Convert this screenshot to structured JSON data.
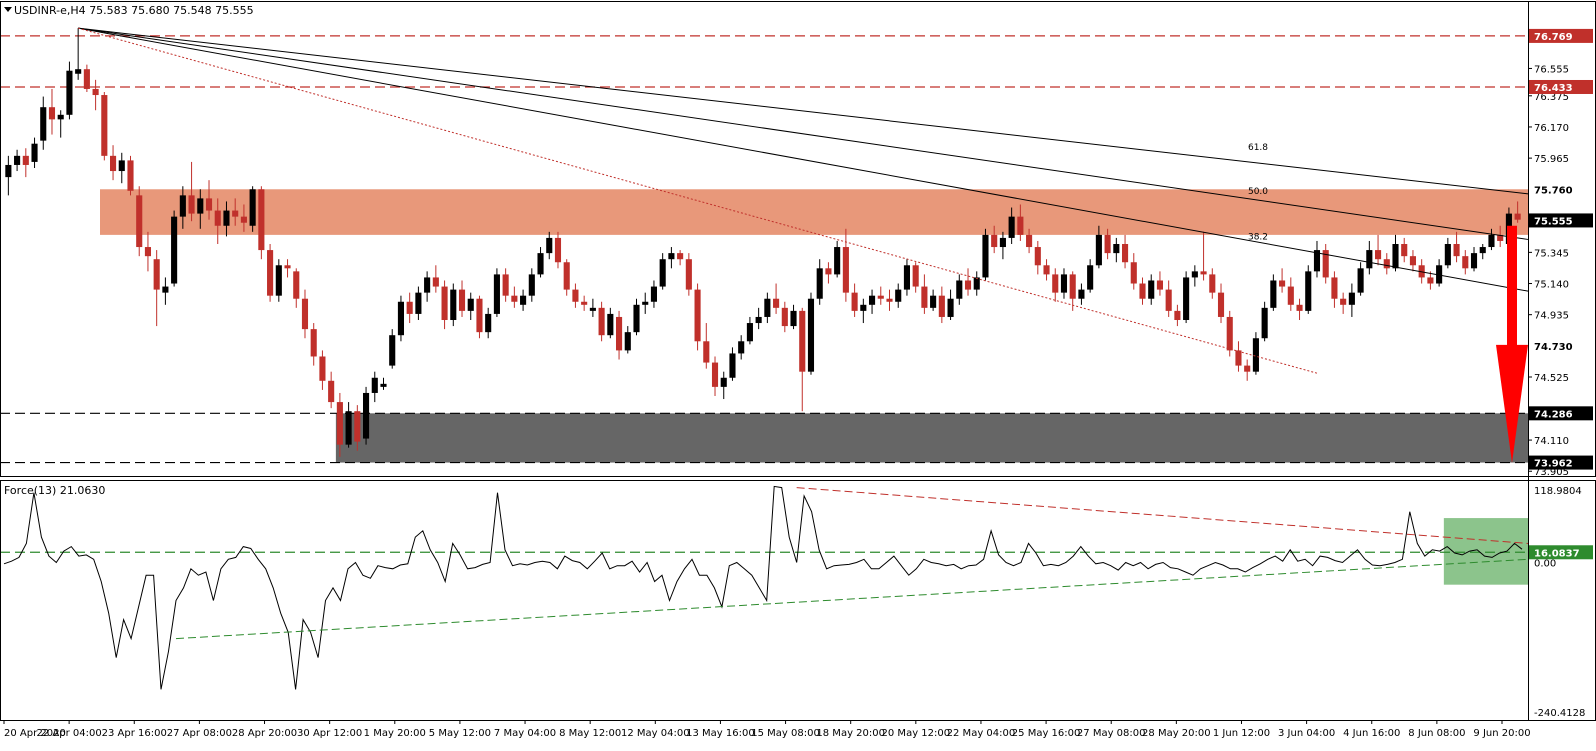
{
  "header": {
    "symbol": "USDINR-e,H4",
    "ohlc": "75.583 75.680 75.548 75.555"
  },
  "indicator": {
    "label": "Force(13) 21.0630",
    "axis_ticks": [
      "118.9804",
      "0.00",
      "-240.4128"
    ],
    "level_label": "16.0837"
  },
  "colors": {
    "bull_candle": "#000000",
    "bear_candle": "#c0302b",
    "resistance_zone": "#e8987a",
    "support_zone": "#666666",
    "force_zone": "#8cc48c",
    "arrow": "#ff0000",
    "level_line": "#c0302b",
    "indicator_level": "#2e8b2e"
  },
  "chart_data": {
    "type": "candlestick",
    "price_axis": {
      "ylim": [
        73.9,
        76.9
      ],
      "tick_labels": [
        "76.555",
        "76.375",
        "76.170",
        "75.965",
        "75.345",
        "75.140",
        "74.935",
        "74.525",
        "74.110",
        "73.905"
      ],
      "highlighted_levels": [
        "76.769",
        "76.433",
        "75.760",
        "75.555",
        "74.730",
        "74.286",
        "73.962"
      ]
    },
    "x_tick_labels": [
      "20 Apr 2020",
      "22 Apr 04:00",
      "23 Apr 16:00",
      "27 Apr 08:00",
      "28 Apr 20:00",
      "30 Apr 12:00",
      "1 May 20:00",
      "5 May 12:00",
      "7 May 04:00",
      "8 May 12:00",
      "12 May 04:00",
      "13 May 16:00",
      "15 May 08:00",
      "18 May 20:00",
      "20 May 12:00",
      "22 May 04:00",
      "25 May 16:00",
      "27 May 08:00",
      "28 May 20:00",
      "1 Jun 12:00",
      "3 Jun 04:00",
      "4 Jun 16:00",
      "8 Jun 08:00",
      "9 Jun 20:00"
    ],
    "horizontal_levels": [
      {
        "value": 76.769,
        "label": "76.769",
        "style": "dashed-red"
      },
      {
        "value": 76.433,
        "label": "76.433",
        "style": "dashed-red"
      },
      {
        "value": 74.286,
        "label": "74.286",
        "style": "dashed-black"
      },
      {
        "value": 73.962,
        "label": "73.962",
        "style": "dashed-black"
      }
    ],
    "zones": [
      {
        "kind": "resistance",
        "from": 75.46,
        "to": 75.76
      },
      {
        "kind": "support",
        "from": 73.962,
        "to": 74.286
      }
    ],
    "fibonacci_fan": {
      "anchor_value": 76.82,
      "levels": [
        {
          "label": "38.2",
          "end_value": 75.09
        },
        {
          "label": "50.0",
          "end_value": 75.43
        },
        {
          "label": "61.8",
          "end_value": 75.73
        }
      ]
    },
    "trendline_dotted": {
      "from": 76.82,
      "to": 74.55
    },
    "arrow": {
      "from": 75.52,
      "to": 73.96,
      "direction": "down"
    },
    "candles": [
      [
        75.84,
        75.98,
        75.72,
        75.92
      ],
      [
        75.92,
        76.02,
        75.88,
        75.98
      ],
      [
        75.98,
        76.03,
        75.84,
        75.92
      ],
      [
        75.94,
        76.1,
        75.9,
        76.06
      ],
      [
        76.08,
        76.37,
        76.02,
        76.3
      ],
      [
        76.3,
        76.42,
        76.12,
        76.22
      ],
      [
        76.22,
        76.28,
        76.1,
        76.25
      ],
      [
        76.25,
        76.6,
        76.22,
        76.54
      ],
      [
        76.52,
        76.82,
        76.48,
        76.55
      ],
      [
        76.55,
        76.58,
        76.4,
        76.42
      ],
      [
        76.42,
        76.48,
        76.28,
        76.38
      ],
      [
        76.38,
        76.4,
        75.95,
        75.98
      ],
      [
        75.98,
        76.05,
        75.82,
        75.88
      ],
      [
        75.88,
        76.0,
        75.8,
        75.95
      ],
      [
        75.95,
        75.98,
        75.72,
        75.75
      ],
      [
        75.72,
        75.78,
        75.32,
        75.38
      ],
      [
        75.38,
        75.48,
        75.22,
        75.32
      ],
      [
        75.3,
        75.36,
        74.86,
        75.1
      ],
      [
        75.08,
        75.18,
        75.0,
        75.12
      ],
      [
        75.14,
        75.62,
        75.12,
        75.58
      ],
      [
        75.58,
        75.78,
        75.5,
        75.72
      ],
      [
        75.72,
        75.94,
        75.55,
        75.6
      ],
      [
        75.6,
        75.76,
        75.5,
        75.7
      ],
      [
        75.7,
        75.82,
        75.56,
        75.62
      ],
      [
        75.62,
        75.7,
        75.4,
        75.52
      ],
      [
        75.52,
        75.68,
        75.45,
        75.62
      ],
      [
        75.62,
        75.7,
        75.52,
        75.58
      ],
      [
        75.58,
        75.66,
        75.48,
        75.54
      ],
      [
        75.52,
        75.78,
        75.48,
        75.76
      ],
      [
        75.76,
        75.78,
        75.3,
        75.36
      ],
      [
        75.36,
        75.4,
        75.02,
        75.06
      ],
      [
        75.06,
        75.3,
        75.02,
        75.26
      ],
      [
        75.26,
        75.3,
        75.18,
        75.24
      ],
      [
        75.22,
        75.24,
        74.98,
        75.04
      ],
      [
        75.04,
        75.1,
        74.78,
        74.84
      ],
      [
        74.84,
        74.88,
        74.6,
        74.66
      ],
      [
        74.66,
        74.7,
        74.44,
        74.5
      ],
      [
        74.5,
        74.56,
        74.32,
        74.36
      ],
      [
        74.36,
        74.42,
        74.0,
        74.08
      ],
      [
        74.08,
        74.36,
        74.06,
        74.3
      ],
      [
        74.3,
        74.34,
        74.04,
        74.1
      ],
      [
        74.12,
        74.46,
        74.08,
        74.42
      ],
      [
        74.42,
        74.56,
        74.36,
        74.52
      ],
      [
        74.46,
        74.52,
        74.44,
        74.48
      ],
      [
        74.6,
        74.84,
        74.58,
        74.8
      ],
      [
        74.8,
        75.06,
        74.76,
        75.02
      ],
      [
        75.02,
        75.08,
        74.88,
        74.94
      ],
      [
        74.94,
        75.12,
        74.9,
        75.08
      ],
      [
        75.08,
        75.22,
        75.02,
        75.18
      ],
      [
        75.18,
        75.26,
        75.08,
        75.12
      ],
      [
        75.12,
        75.16,
        74.84,
        74.9
      ],
      [
        74.9,
        75.14,
        74.86,
        75.1
      ],
      [
        75.1,
        75.16,
        74.92,
        74.96
      ],
      [
        74.96,
        75.08,
        74.9,
        75.04
      ],
      [
        75.04,
        75.06,
        74.78,
        74.82
      ],
      [
        74.82,
        74.98,
        74.78,
        74.94
      ],
      [
        74.94,
        75.24,
        74.92,
        75.2
      ],
      [
        75.2,
        75.24,
        75.02,
        75.06
      ],
      [
        75.06,
        75.12,
        74.98,
        75.02
      ],
      [
        75.0,
        75.1,
        74.96,
        75.06
      ],
      [
        75.06,
        75.24,
        75.02,
        75.2
      ],
      [
        75.2,
        75.38,
        75.18,
        75.34
      ],
      [
        75.34,
        75.48,
        75.3,
        75.44
      ],
      [
        75.44,
        75.48,
        75.24,
        75.28
      ],
      [
        75.28,
        75.3,
        75.06,
        75.1
      ],
      [
        75.1,
        75.14,
        74.98,
        75.02
      ],
      [
        75.02,
        75.06,
        74.96,
        75.0
      ],
      [
        74.96,
        75.04,
        74.92,
        74.98
      ],
      [
        74.98,
        75.02,
        74.76,
        74.8
      ],
      [
        74.8,
        74.98,
        74.78,
        74.94
      ],
      [
        74.92,
        74.96,
        74.64,
        74.7
      ],
      [
        74.7,
        74.86,
        74.68,
        74.82
      ],
      [
        74.82,
        75.04,
        74.8,
        75.0
      ],
      [
        75.0,
        75.08,
        74.94,
        75.02
      ],
      [
        75.02,
        75.16,
        74.98,
        75.12
      ],
      [
        75.12,
        75.34,
        75.1,
        75.3
      ],
      [
        75.3,
        75.38,
        75.24,
        75.34
      ],
      [
        75.34,
        75.36,
        75.26,
        75.3
      ],
      [
        75.3,
        75.34,
        75.06,
        75.1
      ],
      [
        75.1,
        75.14,
        74.7,
        74.76
      ],
      [
        74.76,
        74.88,
        74.58,
        74.62
      ],
      [
        74.62,
        74.66,
        74.4,
        74.46
      ],
      [
        74.46,
        74.56,
        74.38,
        74.52
      ],
      [
        74.52,
        74.72,
        74.5,
        74.68
      ],
      [
        74.68,
        74.8,
        74.64,
        74.76
      ],
      [
        74.76,
        74.92,
        74.74,
        74.88
      ],
      [
        74.88,
        74.98,
        74.84,
        74.92
      ],
      [
        74.92,
        75.08,
        74.88,
        75.04
      ],
      [
        75.04,
        75.14,
        74.94,
        74.98
      ],
      [
        74.98,
        75.02,
        74.82,
        74.86
      ],
      [
        74.86,
        75.0,
        74.84,
        74.96
      ],
      [
        74.96,
        74.98,
        74.3,
        74.56
      ],
      [
        74.56,
        75.08,
        74.54,
        75.04
      ],
      [
        75.04,
        75.3,
        75.0,
        75.24
      ],
      [
        75.24,
        75.28,
        75.14,
        75.2
      ],
      [
        75.2,
        75.42,
        75.18,
        75.38
      ],
      [
        75.38,
        75.5,
        75.02,
        75.08
      ],
      [
        75.08,
        75.14,
        74.92,
        74.96
      ],
      [
        74.96,
        75.04,
        74.88,
        75.0
      ],
      [
        75.0,
        75.1,
        74.94,
        75.06
      ],
      [
        75.06,
        75.12,
        75.0,
        75.04
      ],
      [
        75.04,
        75.1,
        74.96,
        75.02
      ],
      [
        75.02,
        75.14,
        74.98,
        75.1
      ],
      [
        75.1,
        75.3,
        75.06,
        75.26
      ],
      [
        75.26,
        75.28,
        75.08,
        75.12
      ],
      [
        75.12,
        75.2,
        74.94,
        74.98
      ],
      [
        74.98,
        75.1,
        74.96,
        75.06
      ],
      [
        75.06,
        75.12,
        74.88,
        74.92
      ],
      [
        74.92,
        75.1,
        74.9,
        75.04
      ],
      [
        75.04,
        75.2,
        75.0,
        75.16
      ],
      [
        75.16,
        75.24,
        75.06,
        75.1
      ],
      [
        75.1,
        75.22,
        75.06,
        75.18
      ],
      [
        75.18,
        75.5,
        75.16,
        75.46
      ],
      [
        75.46,
        75.52,
        75.34,
        75.38
      ],
      [
        75.38,
        75.48,
        75.3,
        75.44
      ],
      [
        75.44,
        75.64,
        75.4,
        75.58
      ],
      [
        75.58,
        75.66,
        75.42,
        75.46
      ],
      [
        75.46,
        75.5,
        75.34,
        75.38
      ],
      [
        75.38,
        75.42,
        75.2,
        75.26
      ],
      [
        75.26,
        75.3,
        75.16,
        75.2
      ],
      [
        75.2,
        75.24,
        75.02,
        75.08
      ],
      [
        75.08,
        75.24,
        75.04,
        75.2
      ],
      [
        75.2,
        75.22,
        74.96,
        75.04
      ],
      [
        75.04,
        75.14,
        75.0,
        75.1
      ],
      [
        75.1,
        75.3,
        75.08,
        75.26
      ],
      [
        75.26,
        75.52,
        75.24,
        75.46
      ],
      [
        75.46,
        75.5,
        75.3,
        75.34
      ],
      [
        75.34,
        75.44,
        75.28,
        75.4
      ],
      [
        75.4,
        75.46,
        75.24,
        75.28
      ],
      [
        75.28,
        75.34,
        75.1,
        75.14
      ],
      [
        75.14,
        75.18,
        75.0,
        75.04
      ],
      [
        75.04,
        75.2,
        75.0,
        75.16
      ],
      [
        75.16,
        75.22,
        75.06,
        75.1
      ],
      [
        75.1,
        75.16,
        74.92,
        74.96
      ],
      [
        74.96,
        75.0,
        74.86,
        74.9
      ],
      [
        74.9,
        75.22,
        74.88,
        75.18
      ],
      [
        75.18,
        75.26,
        75.12,
        75.22
      ],
      [
        75.22,
        75.48,
        75.16,
        75.2
      ],
      [
        75.2,
        75.24,
        75.04,
        75.08
      ],
      [
        75.08,
        75.14,
        74.88,
        74.92
      ],
      [
        74.92,
        74.96,
        74.66,
        74.7
      ],
      [
        74.7,
        74.76,
        74.56,
        74.6
      ],
      [
        74.6,
        74.64,
        74.5,
        74.56
      ],
      [
        74.56,
        74.82,
        74.54,
        74.78
      ],
      [
        74.78,
        75.02,
        74.76,
        74.98
      ],
      [
        74.98,
        75.2,
        74.96,
        75.16
      ],
      [
        75.16,
        75.24,
        75.08,
        75.12
      ],
      [
        75.12,
        75.18,
        74.96,
        75.0
      ],
      [
        75.0,
        75.04,
        74.9,
        74.96
      ],
      [
        74.96,
        75.26,
        74.94,
        75.22
      ],
      [
        75.22,
        75.42,
        75.18,
        75.36
      ],
      [
        75.36,
        75.4,
        75.14,
        75.18
      ],
      [
        75.18,
        75.22,
        74.98,
        75.04
      ],
      [
        75.04,
        75.08,
        74.94,
        75.0
      ],
      [
        75.0,
        75.14,
        74.92,
        75.08
      ],
      [
        75.08,
        75.28,
        75.06,
        75.24
      ],
      [
        75.24,
        75.42,
        75.2,
        75.36
      ],
      [
        75.36,
        75.46,
        75.26,
        75.3
      ],
      [
        75.3,
        75.34,
        75.2,
        75.24
      ],
      [
        75.24,
        75.46,
        75.22,
        75.4
      ],
      [
        75.4,
        75.44,
        75.28,
        75.32
      ],
      [
        75.32,
        75.36,
        75.22,
        75.26
      ],
      [
        75.26,
        75.3,
        75.14,
        75.18
      ],
      [
        75.18,
        75.22,
        75.1,
        75.14
      ],
      [
        75.14,
        75.3,
        75.12,
        75.26
      ],
      [
        75.26,
        75.44,
        75.24,
        75.4
      ],
      [
        75.4,
        75.48,
        75.28,
        75.32
      ],
      [
        75.32,
        75.36,
        75.2,
        75.24
      ],
      [
        75.24,
        75.38,
        75.22,
        75.34
      ],
      [
        75.34,
        75.4,
        75.3,
        75.38
      ],
      [
        75.38,
        75.5,
        75.36,
        75.46
      ],
      [
        75.46,
        75.52,
        75.38,
        75.42
      ],
      [
        75.4,
        75.64,
        75.3,
        75.6
      ],
      [
        75.6,
        75.68,
        75.54,
        75.56
      ]
    ],
    "force_index": {
      "name": "Force(13)",
      "current": 21.063,
      "ylim": [
        -240.4128,
        118.9804
      ],
      "level": 16.0837,
      "values": [
        -2,
        2,
        8,
        30,
        110,
        40,
        10,
        0,
        18,
        25,
        10,
        12,
        5,
        -30,
        -80,
        -150,
        -90,
        -120,
        -70,
        -20,
        -20,
        -200,
        -140,
        -60,
        -40,
        -10,
        -20,
        -15,
        -60,
        -10,
        5,
        8,
        25,
        22,
        5,
        -10,
        -40,
        -80,
        -110,
        -200,
        -90,
        -110,
        -150,
        -60,
        -40,
        -60,
        -10,
        0,
        -20,
        -25,
        -5,
        -8,
        -10,
        -4,
        -2,
        40,
        50,
        20,
        0,
        -30,
        30,
        12,
        -10,
        -8,
        -3,
        0,
        110,
        20,
        -5,
        -2,
        -4,
        0,
        2,
        0,
        -10,
        10,
        3,
        0,
        -10,
        2,
        15,
        -10,
        -5,
        -5,
        2,
        -15,
        0,
        -30,
        -20,
        -60,
        -30,
        -10,
        5,
        -20,
        -20,
        -40,
        -70,
        -5,
        0,
        -10,
        -20,
        -40,
        -60,
        120,
        118,
        40,
        0,
        105,
        80,
        20,
        -10,
        -5,
        -4,
        -3,
        0,
        5,
        -10,
        -10,
        0,
        10,
        -5,
        -20,
        -10,
        5,
        0,
        -2,
        -5,
        -3,
        -10,
        -5,
        -4,
        5,
        50,
        12,
        0,
        -5,
        0,
        30,
        15,
        -5,
        -3,
        -5,
        0,
        10,
        25,
        10,
        -2,
        0,
        -5,
        -12,
        0,
        -5,
        0,
        -10,
        -3,
        0,
        -8,
        -10,
        -15,
        -20,
        -10,
        -5,
        0,
        -4,
        -10,
        -10,
        -15,
        -8,
        -2,
        5,
        10,
        2,
        20,
        2,
        5,
        -5,
        10,
        8,
        3,
        0,
        10,
        20,
        5,
        -4,
        -5,
        -3,
        0,
        5,
        80,
        30,
        10,
        20,
        18,
        25,
        15,
        12,
        18,
        20,
        10,
        8,
        15,
        18,
        30,
        21
      ]
    },
    "force_trendlines": [
      {
        "kind": "rising-support",
        "from_value": -120,
        "to_value": 5
      },
      {
        "kind": "falling-resistance",
        "from_value": 118,
        "to_value": 30
      }
    ],
    "force_zone": {
      "from": -35,
      "to": 70
    }
  }
}
